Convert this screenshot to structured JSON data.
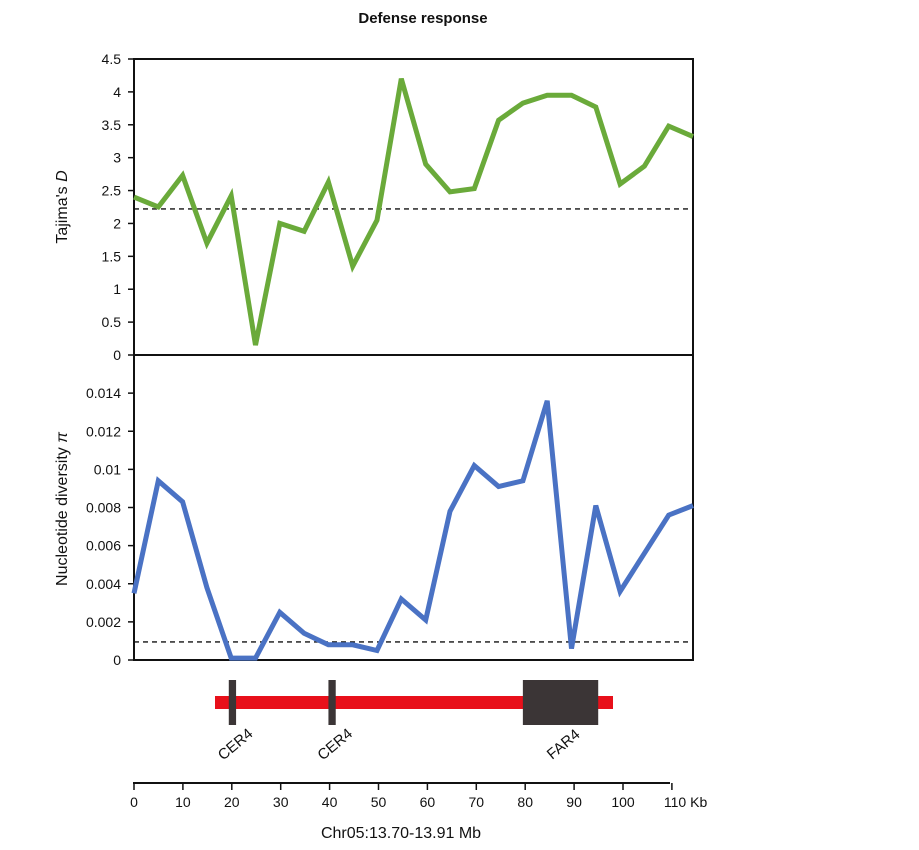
{
  "title": "Defense response",
  "chart_data": [
    {
      "type": "line",
      "panel": "top",
      "ylabel_prefix": "Tajima's ",
      "ylabel_italic": "D",
      "ylim": [
        0,
        4.5
      ],
      "yticks": [
        "0",
        "0.5",
        "1",
        "1.5",
        "2",
        "2.5",
        "3",
        "3.5",
        "4",
        "4.5"
      ],
      "reference_line": 2.22,
      "series": [
        {
          "color": "#6aaa3a",
          "x": [
            0,
            5,
            10,
            15,
            20,
            25,
            30,
            35,
            40,
            45,
            50,
            55,
            60,
            65,
            70,
            75,
            80,
            85,
            90,
            95,
            100,
            105,
            110,
            115
          ],
          "y": [
            2.4,
            2.25,
            2.73,
            1.7,
            2.42,
            0.15,
            2.0,
            1.88,
            2.63,
            1.35,
            2.05,
            4.2,
            2.9,
            2.48,
            2.53,
            3.57,
            3.83,
            3.95,
            3.95,
            3.77,
            2.6,
            2.87,
            3.48,
            3.32
          ]
        }
      ]
    },
    {
      "type": "line",
      "panel": "bottom",
      "ylabel_prefix": "Nucleotide diversity ",
      "ylabel_italic": "π",
      "ylim": [
        0,
        0.016
      ],
      "yticks": [
        "0",
        "0.002",
        "0.004",
        "0.006",
        "0.008",
        "0.01",
        "0.012",
        "0.014"
      ],
      "reference_line": 0.00095,
      "series": [
        {
          "color": "#4a72c4",
          "x": [
            0,
            5,
            10,
            15,
            20,
            25,
            30,
            35,
            40,
            45,
            50,
            55,
            60,
            65,
            70,
            75,
            80,
            85,
            90,
            95,
            100,
            105,
            110,
            115
          ],
          "y": [
            0.0035,
            0.0094,
            0.0083,
            0.0038,
            0.0001,
            0.0001,
            0.0025,
            0.0014,
            0.0008,
            0.0008,
            0.0005,
            0.0032,
            0.0021,
            0.0078,
            0.0102,
            0.0091,
            0.0094,
            0.0136,
            0.0006,
            0.0081,
            0.0036,
            0.0056,
            0.0076,
            0.0081
          ]
        }
      ]
    }
  ],
  "gene_track": {
    "bar_color": "#e8101a",
    "block_color": "#3b3536",
    "genes": [
      {
        "label": "CER4",
        "start": 19.5,
        "end": 21
      },
      {
        "label": "CER4",
        "start": 40,
        "end": 41.5
      },
      {
        "label": "FAR4",
        "start": 80,
        "end": 95.5
      }
    ]
  },
  "x_axis": {
    "ticks": [
      "0",
      "10",
      "20",
      "30",
      "40",
      "50",
      "60",
      "70",
      "80",
      "90",
      "100",
      "110 Kb"
    ],
    "caption": "Chr05:13.70-13.91 Mb"
  }
}
